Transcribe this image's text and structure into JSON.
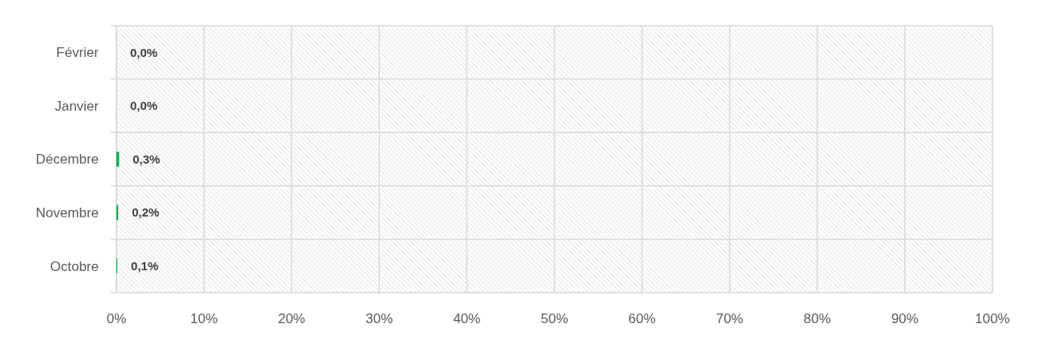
{
  "chart_data": {
    "type": "bar",
    "orientation": "horizontal",
    "categories": [
      "Février",
      "Janvier",
      "Décembre",
      "Novembre",
      "Octobre"
    ],
    "values": [
      0.0,
      0.0,
      0.3,
      0.2,
      0.1
    ],
    "value_labels": [
      "0,0%",
      "0,0%",
      "0,3%",
      "0,2%",
      "0,1%"
    ],
    "color": "#00b050",
    "xlim": [
      0,
      100
    ],
    "xticks": [
      {
        "value": 0,
        "label": "0%"
      },
      {
        "value": 10,
        "label": "10%"
      },
      {
        "value": 20,
        "label": "20%"
      },
      {
        "value": 30,
        "label": "30%"
      },
      {
        "value": 40,
        "label": "40%"
      },
      {
        "value": 50,
        "label": "50%"
      },
      {
        "value": 60,
        "label": "60%"
      },
      {
        "value": 70,
        "label": "70%"
      },
      {
        "value": 80,
        "label": "80%"
      },
      {
        "value": 90,
        "label": "90%"
      },
      {
        "value": 100,
        "label": "100%"
      }
    ],
    "grid": true
  }
}
